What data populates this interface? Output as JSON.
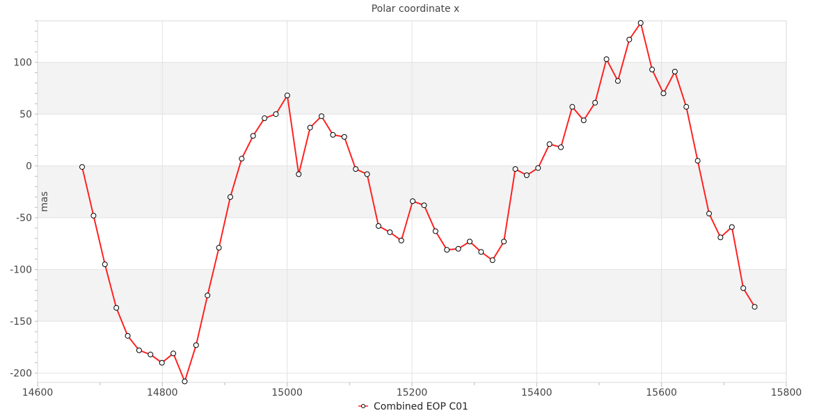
{
  "chart_data": {
    "type": "line",
    "title": "Polar coordinate x",
    "xlabel": "",
    "ylabel": "mas",
    "xlim": [
      14600,
      15800
    ],
    "ylim": [
      -209,
      140
    ],
    "xticks": [
      14600,
      14800,
      15000,
      15200,
      15400,
      15600,
      15800
    ],
    "yticks": [
      -200,
      -150,
      -100,
      -50,
      0,
      50,
      100
    ],
    "grid": true,
    "alternating_bands": true,
    "legend_position": "bottom",
    "colors": {
      "line": "#ff2020",
      "marker_fill": "#ffffff",
      "marker_stroke": "#000000",
      "band": "#f3f3f3",
      "grid": "#e2e2e2"
    },
    "series": [
      {
        "name": "Combined EOP C01",
        "x0": 14671.4,
        "dx": 18.27,
        "values": [
          -1,
          -48,
          -95,
          -137,
          -164,
          -178,
          -182,
          -190,
          -181,
          -208,
          -173,
          -125,
          -79,
          -30,
          7,
          29,
          46,
          50,
          68,
          -8,
          37,
          48,
          30,
          28,
          -3,
          -8,
          -58,
          -64,
          -72,
          -34,
          -38,
          -63,
          -81,
          -80,
          -73,
          -83,
          -91,
          -73,
          -3,
          -9,
          -2,
          21,
          18,
          57,
          44,
          61,
          103,
          82,
          122,
          138,
          93,
          70,
          91,
          57,
          5,
          -46,
          -69,
          -59,
          -118,
          -136
        ]
      }
    ]
  }
}
